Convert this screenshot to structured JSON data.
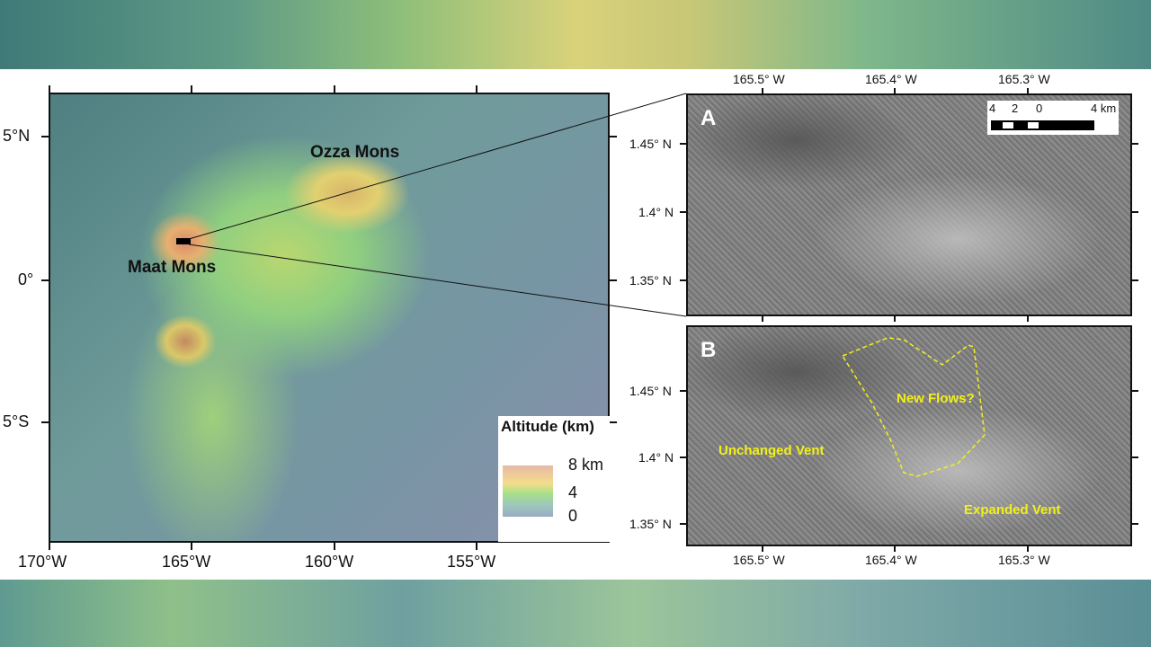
{
  "main_map": {
    "x_ticks": [
      "170°W",
      "165°W",
      "160°W",
      "155°W"
    ],
    "y_ticks": [
      "5°N",
      "0°",
      "5°S"
    ],
    "features": {
      "maat": "Maat Mons",
      "ozza": "Ozza Mons"
    },
    "legend": {
      "title": "Altitude (km)",
      "values": [
        "8 km",
        "4",
        "0"
      ],
      "colors": [
        "#e8b8a8",
        "#f3dd8a",
        "#a8e08a",
        "#9aaac0"
      ]
    }
  },
  "panel_a": {
    "label": "A",
    "x_ticks": [
      "165.5° W",
      "165.4° W",
      "165.3° W"
    ],
    "y_ticks": [
      "1.45° N",
      "1.4° N",
      "1.35° N"
    ],
    "scale_bar": {
      "labels": [
        "4",
        "2",
        "0",
        "4 km"
      ]
    }
  },
  "panel_b": {
    "label": "B",
    "x_ticks": [
      "165.5° W",
      "165.4° W",
      "165.3° W"
    ],
    "y_ticks": [
      "1.45° N",
      "1.4° N",
      "1.35° N"
    ],
    "annotations": {
      "new_flows": "New Flows?",
      "unchanged": "Unchanged Vent",
      "expanded": "Expanded Vent"
    },
    "annotation_color": "#f2f01a"
  }
}
